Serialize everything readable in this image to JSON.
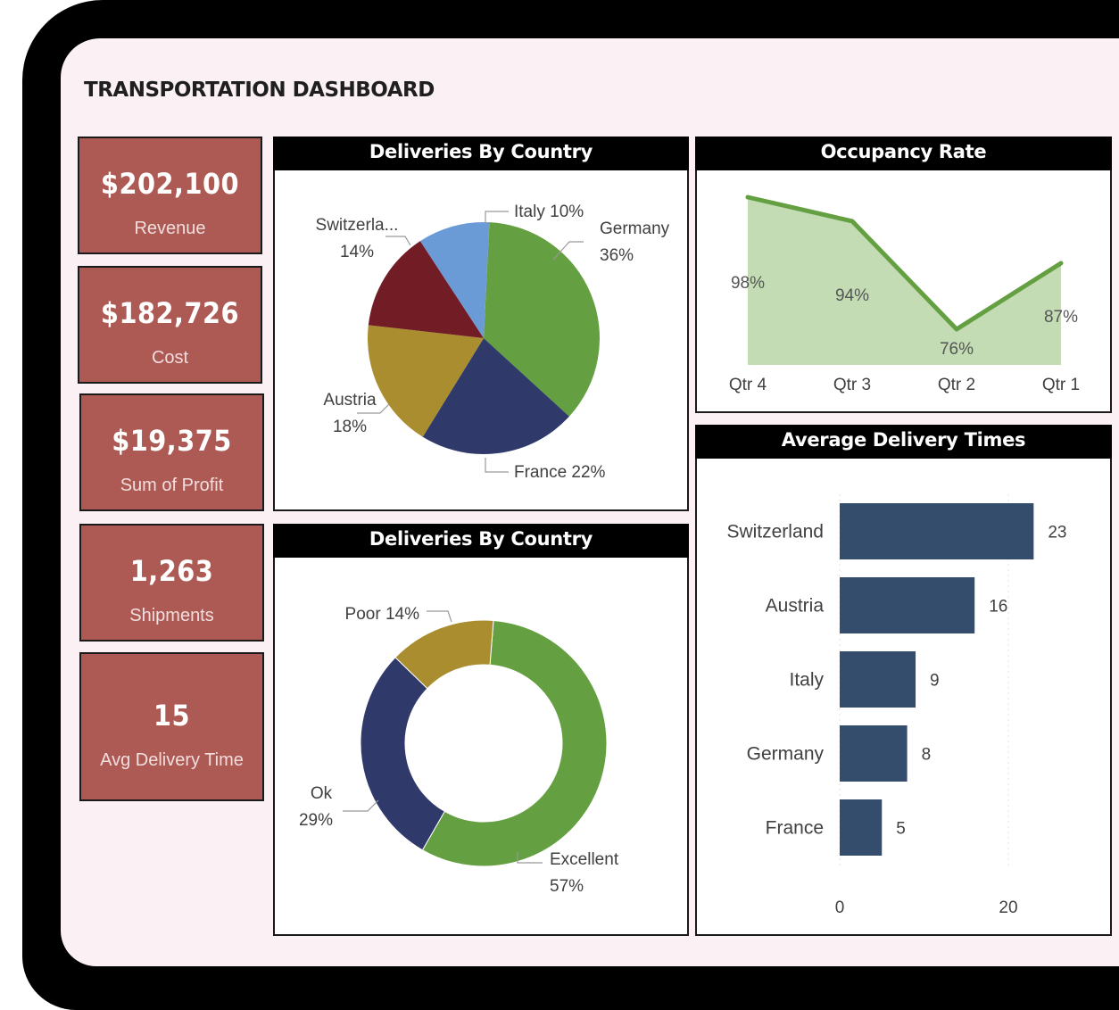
{
  "dashboard": {
    "title": "TRANSPORTATION DASHBOARD"
  },
  "kpis": [
    {
      "value": "$202,100",
      "label": "Revenue"
    },
    {
      "value": "$182,726",
      "label": "Cost"
    },
    {
      "value": "$19,375",
      "label": "Sum of Profit"
    },
    {
      "value": "1,263",
      "label": "Shipments"
    },
    {
      "value": "15",
      "label": "Avg Delivery Time"
    }
  ],
  "colors": {
    "kpi_bg": "#ae5a54",
    "green": "#64a042",
    "navy": "#2f3a6b",
    "olive": "#a98d2e",
    "maroon": "#721c25",
    "blue": "#6b9bd6",
    "bar": "#344d6d",
    "area": "#c3dcb4"
  },
  "panels": {
    "pie": {
      "title": "Deliveries By Country"
    },
    "donut": {
      "title": "Deliveries By Country"
    },
    "line": {
      "title": "Occupancy Rate"
    },
    "bars": {
      "title": "Average Delivery Times"
    }
  },
  "chart_data": [
    {
      "type": "pie",
      "title": "Deliveries By Country",
      "categories": [
        "Germany",
        "France",
        "Austria",
        "Switzerla...",
        "Italy"
      ],
      "values": [
        36,
        22,
        18,
        14,
        10
      ],
      "labels": [
        {
          "name": "Germany",
          "pct": "36%"
        },
        {
          "name": "France",
          "pct": "22%"
        },
        {
          "name": "Austria",
          "pct": "18%"
        },
        {
          "name": "Switzerla...",
          "pct": "14%"
        },
        {
          "name": "Italy",
          "pct": "10%"
        }
      ]
    },
    {
      "type": "pie",
      "subtype": "donut",
      "title": "Deliveries By Country",
      "categories": [
        "Excellent",
        "Ok",
        "Poor"
      ],
      "values": [
        57,
        29,
        14
      ],
      "labels": [
        {
          "name": "Excellent",
          "pct": "57%"
        },
        {
          "name": "Ok",
          "pct": "29%"
        },
        {
          "name": "Poor",
          "pct": "14%"
        }
      ]
    },
    {
      "type": "area",
      "title": "Occupancy Rate",
      "categories": [
        "Qtr 4",
        "Qtr 3",
        "Qtr 2",
        "Qtr 1"
      ],
      "values": [
        98,
        94,
        76,
        87
      ],
      "value_labels": [
        "98%",
        "94%",
        "76%",
        "87%"
      ]
    },
    {
      "type": "bar",
      "orientation": "horizontal",
      "title": "Average Delivery Times",
      "categories": [
        "Switzerland",
        "Austria",
        "Italy",
        "Germany",
        "France"
      ],
      "values": [
        23,
        16,
        9,
        8,
        5
      ],
      "value_labels": [
        "23",
        "16",
        "9",
        "8",
        "5"
      ],
      "x_ticks": [
        "0",
        "20"
      ]
    }
  ]
}
